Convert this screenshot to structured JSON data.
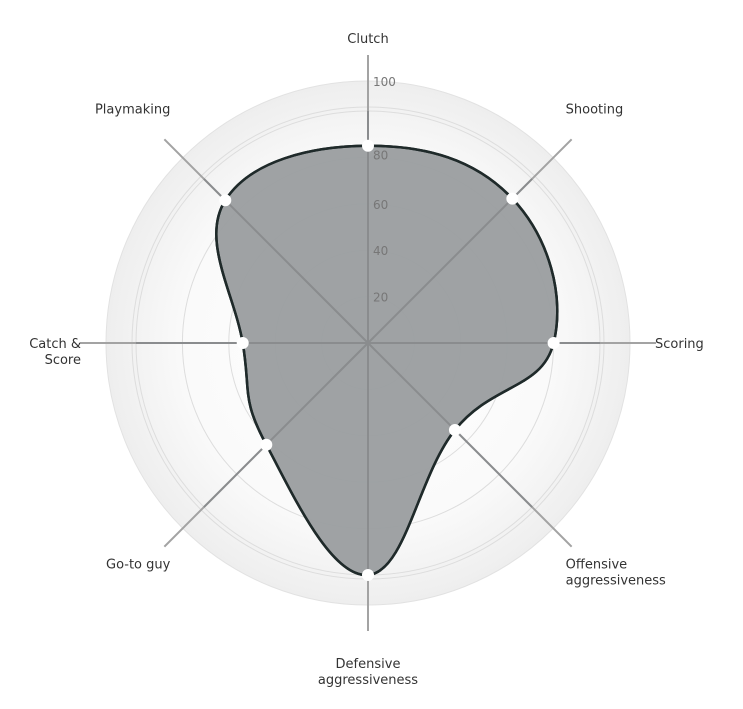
{
  "chart_data": {
    "type": "radar",
    "range": [
      0,
      100
    ],
    "ticks": [
      "20",
      "40",
      "60",
      "80",
      "100"
    ],
    "axes": [
      {
        "lines": [
          "Clutch"
        ],
        "value": 85
      },
      {
        "lines": [
          "Shooting"
        ],
        "value": 88
      },
      {
        "lines": [
          "Scoring"
        ],
        "value": 80
      },
      {
        "lines": [
          "Offensive",
          "aggressiveness"
        ],
        "value": 53
      },
      {
        "lines": [
          "Defensive",
          "aggressiveness"
        ],
        "value": 100
      },
      {
        "lines": [
          "Go-to guy"
        ],
        "value": 62
      },
      {
        "lines": [
          "Catch &",
          "Score"
        ],
        "value": 54
      },
      {
        "lines": [
          "Playmaking"
        ],
        "value": 87
      }
    ],
    "colors": {
      "fill": "#9a9d9f",
      "stroke": "#1f2a2a",
      "grid": "#dddddd",
      "axis": "#a3a3a3",
      "marker": "#ffffff"
    }
  }
}
